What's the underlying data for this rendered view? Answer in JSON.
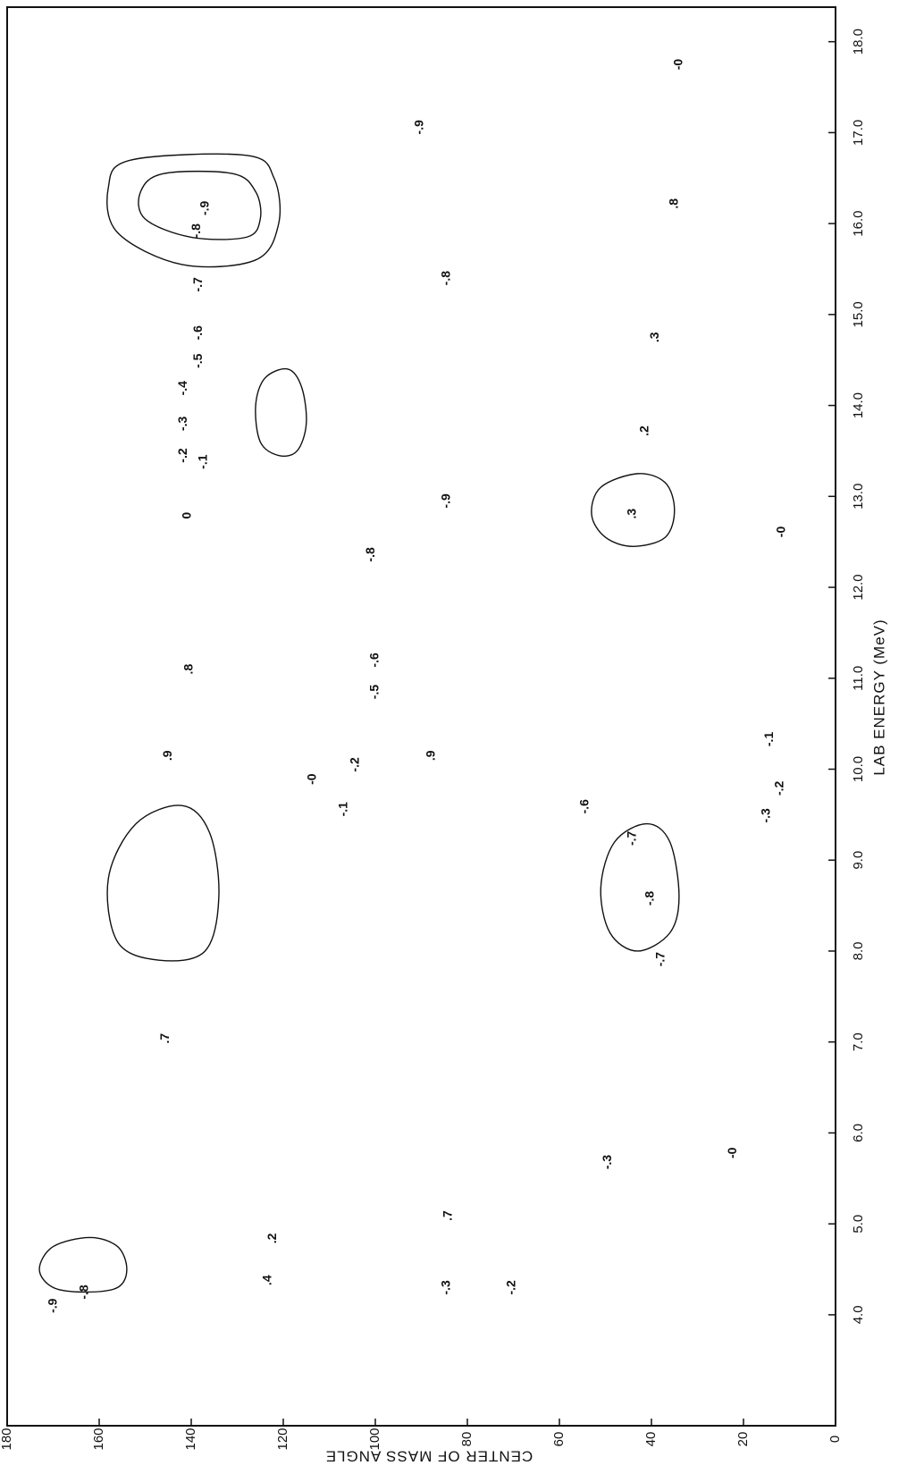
{
  "chart_data": {
    "type": "contour",
    "x_label": "LAB ENERGY (MeV)",
    "y_label": "CENTER OF MASS ANGLE",
    "xlim": [
      2.78,
      18.38
    ],
    "xticks": [
      {
        "value": 4,
        "label": "4.0"
      },
      {
        "value": 5,
        "label": "5.0"
      },
      {
        "value": 6,
        "label": "6.0"
      },
      {
        "value": 7,
        "label": "7.0"
      },
      {
        "value": 8,
        "label": "8.0"
      },
      {
        "value": 9,
        "label": "9.0"
      },
      {
        "value": 10,
        "label": "10.0"
      },
      {
        "value": 11,
        "label": "11.0"
      },
      {
        "value": 12,
        "label": "12.0"
      },
      {
        "value": 13,
        "label": "13.0"
      },
      {
        "value": 14,
        "label": "14.0"
      },
      {
        "value": 15,
        "label": "15.0"
      },
      {
        "value": 16,
        "label": "16.0"
      },
      {
        "value": 17,
        "label": "17.0"
      },
      {
        "value": 18,
        "label": "18.0"
      }
    ],
    "ylim": [
      0,
      180
    ],
    "yticks": [
      0,
      20,
      40,
      60,
      80,
      100,
      120,
      140,
      160,
      180
    ],
    "color": "#111111",
    "contours": [
      {
        "level": -0.9,
        "x": [
          15.85,
          16.05,
          16.35,
          16.55,
          16.55,
          16.35,
          16.05,
          15.85
        ],
        "y": [
          128,
          125,
          126,
          131,
          146,
          151,
          150,
          140
        ]
      },
      {
        "level": -0.8,
        "x": [
          15.6,
          16.0,
          16.5,
          16.75,
          16.7,
          16.4,
          15.9,
          15.55
        ],
        "y": [
          126,
          121,
          122,
          128,
          153,
          158,
          156,
          142
        ]
      },
      {
        "level": 0.9,
        "x": [
          8.0,
          8.6,
          9.3,
          9.6,
          9.4,
          8.8,
          8.1,
          7.9
        ],
        "y": [
          137,
          134,
          136,
          142,
          152,
          158,
          156,
          147
        ]
      },
      {
        "level": -0.8,
        "x": [
          8.2,
          8.6,
          9.2,
          9.4,
          9.2,
          8.7,
          8.2,
          8.0
        ],
        "y": [
          36,
          34,
          36,
          41,
          48,
          51,
          49,
          43
        ]
      },
      {
        "level": 0.3,
        "x": [
          12.55,
          12.85,
          13.15,
          13.25,
          13.1,
          12.8,
          12.55,
          12.45
        ],
        "y": [
          37,
          35,
          37,
          43,
          51,
          53,
          50,
          44
        ]
      },
      {
        "level": -0.9,
        "x": [
          4.3,
          4.5,
          4.75,
          4.85,
          4.75,
          4.5,
          4.3,
          4.25
        ],
        "y": [
          156,
          154,
          156,
          162,
          170,
          173,
          170,
          163
        ]
      },
      {
        "level": 0.9,
        "x": [
          13.5,
          13.8,
          14.2,
          14.4,
          14.3,
          14.0,
          13.6,
          13.45
        ],
        "y": [
          117,
          115,
          116,
          119,
          124,
          126,
          125,
          121
        ]
      }
    ],
    "contour_labels": [
      {
        "text": "-.9",
        "x": 4.1,
        "y": 169.9
      },
      {
        "text": "-.8",
        "x": 4.25,
        "y": 163.1
      },
      {
        "text": ".4",
        "x": 4.38,
        "y": 123.3
      },
      {
        "text": ".2",
        "x": 4.84,
        "y": 122.3
      },
      {
        "text": "-.3",
        "x": 4.3,
        "y": 84.5
      },
      {
        "text": "-.2",
        "x": 4.3,
        "y": 70.3
      },
      {
        "text": ".7",
        "x": 5.09,
        "y": 84.1
      },
      {
        "text": "-.3",
        "x": 5.68,
        "y": 49.5
      },
      {
        "text": "-0",
        "x": 5.78,
        "y": 22.3
      },
      {
        "text": ".7",
        "x": 7.04,
        "y": 145.6
      },
      {
        "text": "-.7",
        "x": 7.91,
        "y": 37.9
      },
      {
        "text": "-.8",
        "x": 8.58,
        "y": 40.2
      },
      {
        "text": "-.7",
        "x": 9.24,
        "y": 44.1
      },
      {
        "text": "-.6",
        "x": 9.59,
        "y": 54.4
      },
      {
        "text": "-.3",
        "x": 9.49,
        "y": 15.0
      },
      {
        "text": "-.2",
        "x": 9.79,
        "y": 12.1
      },
      {
        "text": "-.1",
        "x": 10.33,
        "y": 14.3
      },
      {
        "text": "-0",
        "x": 9.89,
        "y": 113.6
      },
      {
        "text": "-.1",
        "x": 9.56,
        "y": 106.8
      },
      {
        "text": "-.2",
        "x": 10.05,
        "y": 104.3
      },
      {
        "text": ".9",
        "x": 10.15,
        "y": 145.0
      },
      {
        "text": ".9",
        "x": 10.15,
        "y": 87.8
      },
      {
        "text": ".8",
        "x": 11.1,
        "y": 140.4
      },
      {
        "text": "-.5",
        "x": 10.85,
        "y": 100.0
      },
      {
        "text": "-.6",
        "x": 11.2,
        "y": 100.0
      },
      {
        "text": "-.8",
        "x": 12.36,
        "y": 100.9
      },
      {
        "text": "-0",
        "x": 12.61,
        "y": 11.7
      },
      {
        "text": "-.9",
        "x": 12.95,
        "y": 84.5
      },
      {
        "text": ".3",
        "x": 12.81,
        "y": 44.1
      },
      {
        "text": "0",
        "x": 12.79,
        "y": 140.8
      },
      {
        "text": "-.1",
        "x": 13.38,
        "y": 137.3
      },
      {
        "text": "-.2",
        "x": 13.45,
        "y": 141.7
      },
      {
        "text": ".2",
        "x": 13.72,
        "y": 41.4
      },
      {
        "text": "-.3",
        "x": 13.8,
        "y": 141.7
      },
      {
        "text": "-.4",
        "x": 14.19,
        "y": 141.7
      },
      {
        "text": "-.5",
        "x": 14.49,
        "y": 138.4
      },
      {
        "text": ".3",
        "x": 14.75,
        "y": 39.2
      },
      {
        "text": "-.6",
        "x": 14.8,
        "y": 138.4
      },
      {
        "text": "-.7",
        "x": 15.33,
        "y": 138.4
      },
      {
        "text": "-.8",
        "x": 15.4,
        "y": 84.5
      },
      {
        "text": "-.8",
        "x": 15.92,
        "y": 138.8
      },
      {
        "text": "-.9",
        "x": 16.17,
        "y": 136.9
      },
      {
        "text": ".8",
        "x": 16.22,
        "y": 35.0
      },
      {
        "text": "-.9",
        "x": 17.06,
        "y": 90.3
      },
      {
        "text": "-0",
        "x": 17.75,
        "y": 34.0
      }
    ]
  }
}
